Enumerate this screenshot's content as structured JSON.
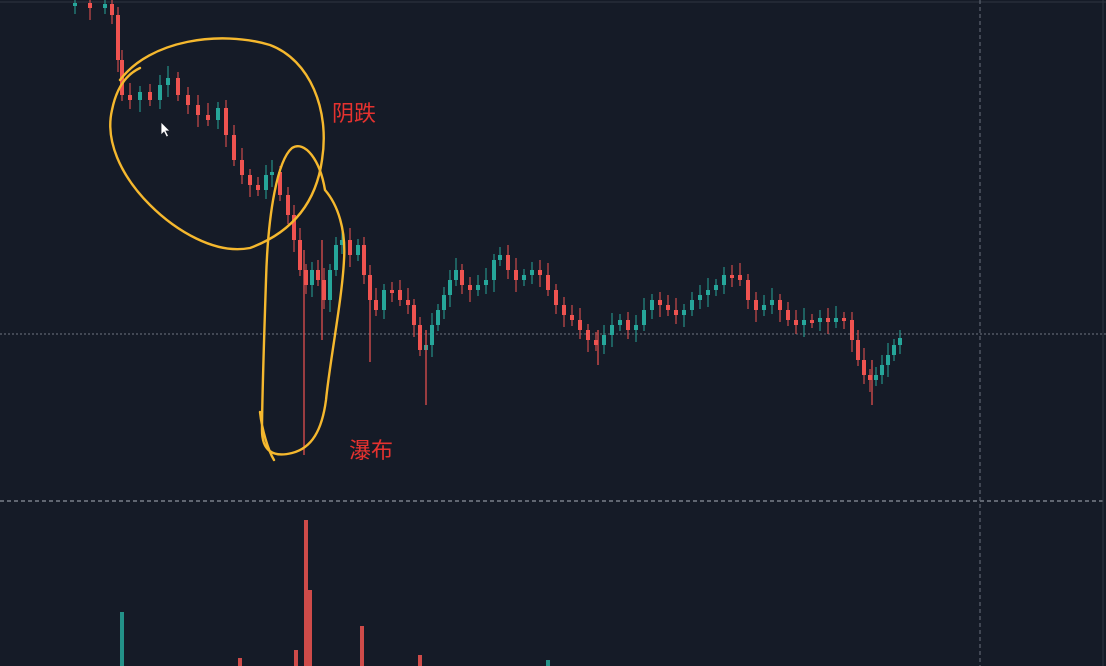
{
  "annotations": {
    "label_yindie": "阴跌",
    "label_pubu": "瀑布"
  },
  "colors": {
    "background": "#151b27",
    "up_candle": "#26a69a",
    "down_candle": "#ef5350",
    "highlight_stroke": "#f5b82e",
    "annotation_text": "#e5322f",
    "divider": "#5d6470"
  },
  "icons": {
    "cursor": "mouse-pointer-icon"
  }
}
